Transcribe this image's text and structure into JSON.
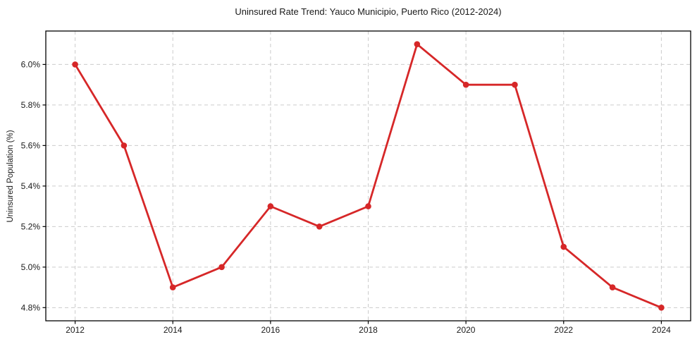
{
  "chart_data": {
    "type": "line",
    "title": "Uninsured Rate Trend: Yauco Municipio, Puerto Rico (2012-2024)",
    "xlabel": "",
    "ylabel": "Uninsured Population (%)",
    "x": [
      2012,
      2013,
      2014,
      2015,
      2016,
      2017,
      2018,
      2019,
      2020,
      2021,
      2022,
      2023,
      2024
    ],
    "values": [
      6.0,
      5.6,
      4.9,
      5.0,
      5.3,
      5.2,
      5.3,
      6.1,
      5.9,
      5.9,
      5.1,
      4.9,
      4.8
    ],
    "xticks": [
      2012,
      2014,
      2016,
      2018,
      2020,
      2022,
      2024
    ],
    "xtick_labels": [
      "2012",
      "2014",
      "2016",
      "2018",
      "2020",
      "2022",
      "2024"
    ],
    "yticks": [
      4.8,
      5.0,
      5.2,
      5.4,
      5.6,
      5.8,
      6.0
    ],
    "ytick_labels": [
      "4.8%",
      "5.0%",
      "5.2%",
      "5.4%",
      "5.6%",
      "5.8%",
      "6.0%"
    ],
    "xlim": [
      2011.4,
      2024.6
    ],
    "ylim": [
      4.735,
      6.165
    ],
    "grid": true,
    "grid_style": "dashed",
    "legend_position": "none",
    "marker": "circle",
    "colors": {
      "line": "#d62728",
      "marker": "#d62728",
      "grid": "#cccccc",
      "spine": "#000000",
      "text": "#1a1a1a",
      "background": "#ffffff"
    }
  }
}
